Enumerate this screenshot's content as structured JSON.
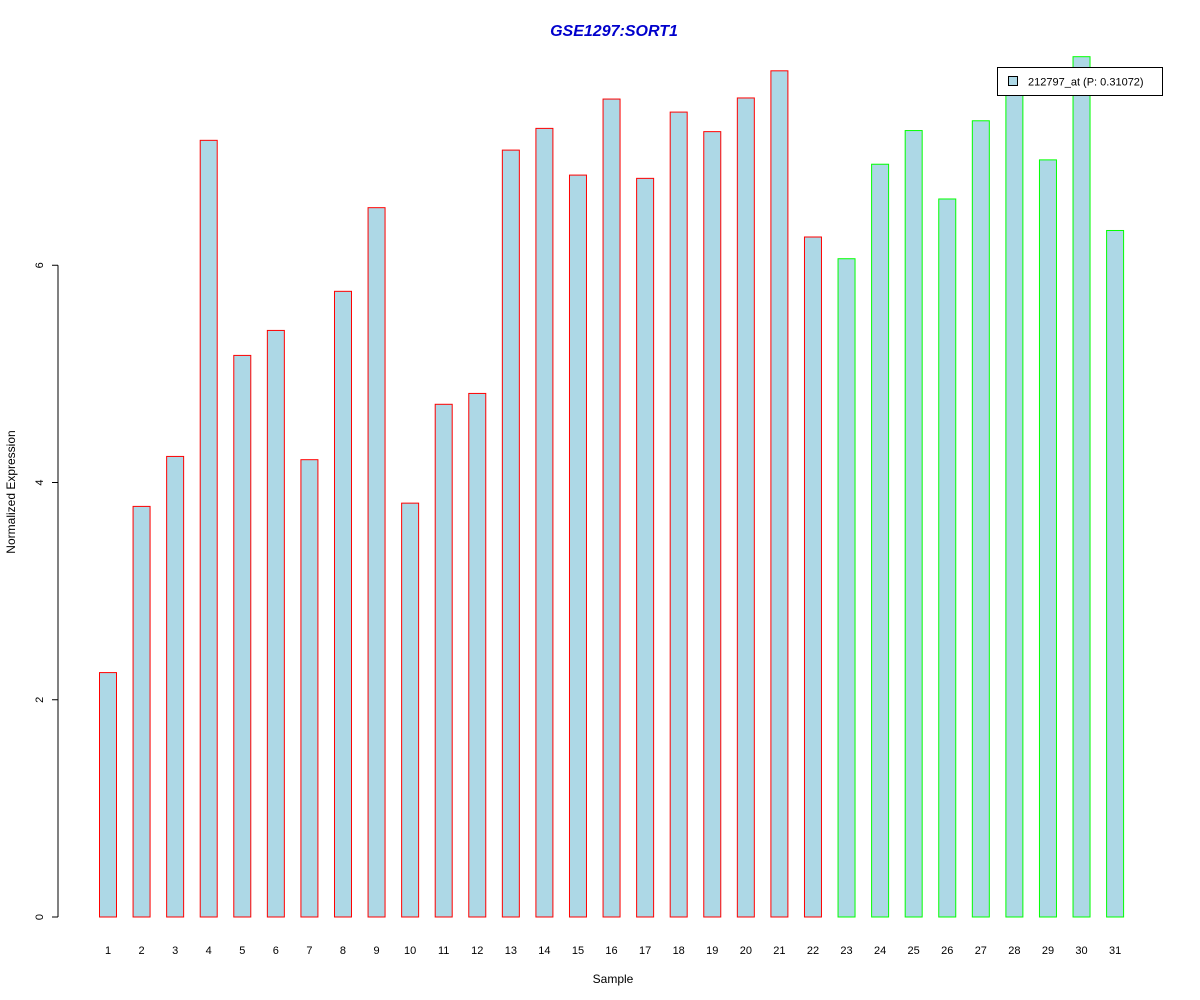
{
  "chart_data": {
    "type": "bar",
    "title": "GSE1297:SORT1",
    "xlabel": "Sample",
    "ylabel": "Normalized Expression",
    "categories": [
      "1",
      "2",
      "3",
      "4",
      "5",
      "6",
      "7",
      "8",
      "9",
      "10",
      "11",
      "12",
      "13",
      "14",
      "15",
      "16",
      "17",
      "18",
      "19",
      "20",
      "21",
      "22",
      "23",
      "24",
      "25",
      "26",
      "27",
      "28",
      "29",
      "30",
      "31"
    ],
    "series": [
      {
        "name": "212797_at (P: 0.31072)",
        "values": [
          2.25,
          3.78,
          4.24,
          7.15,
          5.17,
          5.4,
          4.21,
          5.76,
          6.53,
          3.81,
          4.72,
          4.82,
          7.06,
          7.26,
          6.83,
          7.53,
          6.8,
          7.41,
          7.23,
          7.54,
          7.79,
          6.26,
          6.06,
          6.93,
          7.24,
          6.61,
          7.33,
          7.64,
          6.97,
          7.92,
          6.32
        ],
        "fill": "#add8e6"
      }
    ],
    "group_colors": [
      "#ff0000",
      "#ff0000",
      "#ff0000",
      "#ff0000",
      "#ff0000",
      "#ff0000",
      "#ff0000",
      "#ff0000",
      "#ff0000",
      "#ff0000",
      "#ff0000",
      "#ff0000",
      "#ff0000",
      "#ff0000",
      "#ff0000",
      "#ff0000",
      "#ff0000",
      "#ff0000",
      "#ff0000",
      "#ff0000",
      "#ff0000",
      "#ff0000",
      "#00ff00",
      "#00ff00",
      "#00ff00",
      "#00ff00",
      "#00ff00",
      "#00ff00",
      "#00ff00",
      "#00ff00",
      "#00ff00"
    ],
    "yticks": [
      "0",
      "2",
      "4",
      "6"
    ],
    "ylim": [
      0,
      8
    ],
    "title_color": "#0000cc",
    "legend_position": "top-right",
    "grid": false
  }
}
